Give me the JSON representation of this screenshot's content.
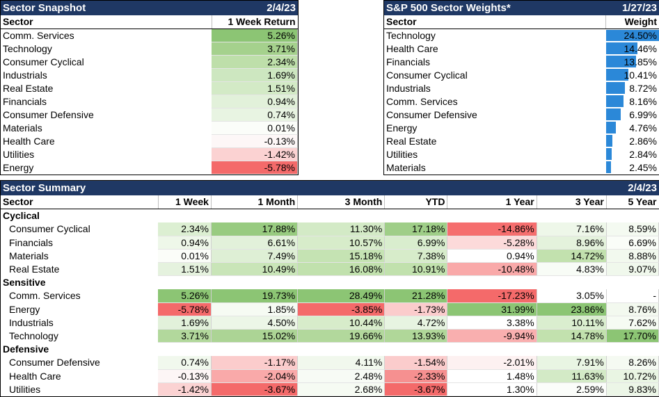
{
  "snapshot": {
    "title": "Sector Snapshot",
    "date": "2/4/23",
    "col_sector": "Sector",
    "col_return": "1 Week Return",
    "rows": [
      {
        "sector": "Comm. Services",
        "ret": "5.26%",
        "color": "#8cc574"
      },
      {
        "sector": "Technology",
        "ret": "3.71%",
        "color": "#a5d18d"
      },
      {
        "sector": "Consumer Cyclical",
        "ret": "2.34%",
        "color": "#bedfaa"
      },
      {
        "sector": "Industrials",
        "ret": "1.69%",
        "color": "#cde7c0"
      },
      {
        "sector": "Real Estate",
        "ret": "1.51%",
        "color": "#d3eac6"
      },
      {
        "sector": "Financials",
        "ret": "0.94%",
        "color": "#e2f1da"
      },
      {
        "sector": "Consumer Defensive",
        "ret": "0.74%",
        "color": "#e8f4e2"
      },
      {
        "sector": "Materials",
        "ret": "0.01%",
        "color": "#fbfdf9"
      },
      {
        "sector": "Health Care",
        "ret": "-0.13%",
        "color": "#fdf7f7"
      },
      {
        "sector": "Utilities",
        "ret": "-1.42%",
        "color": "#fbd2d2"
      },
      {
        "sector": "Energy",
        "ret": "-5.78%",
        "color": "#f46a6a"
      }
    ]
  },
  "weights": {
    "title": "S&P 500 Sector Weights*",
    "date": "1/27/23",
    "col_sector": "Sector",
    "col_weight": "Weight",
    "bar_color": "#2b88d8",
    "rows": [
      {
        "sector": "Technology",
        "weight": "24.50%",
        "value": 24.5
      },
      {
        "sector": "Health Care",
        "weight": "14.46%",
        "value": 14.46
      },
      {
        "sector": "Financials",
        "weight": "13.85%",
        "value": 13.85
      },
      {
        "sector": "Consumer Cyclical",
        "weight": "10.41%",
        "value": 10.41
      },
      {
        "sector": "Industrials",
        "weight": "8.72%",
        "value": 8.72
      },
      {
        "sector": "Comm. Services",
        "weight": "8.16%",
        "value": 8.16
      },
      {
        "sector": "Consumer Defensive",
        "weight": "6.99%",
        "value": 6.99
      },
      {
        "sector": "Energy",
        "weight": "4.76%",
        "value": 4.76
      },
      {
        "sector": "Real Estate",
        "weight": "2.86%",
        "value": 2.86
      },
      {
        "sector": "Utilities",
        "weight": "2.84%",
        "value": 2.84
      },
      {
        "sector": "Materials",
        "weight": "2.45%",
        "value": 2.45
      }
    ]
  },
  "summary": {
    "title": "Sector Summary",
    "date": "2/4/23",
    "columns": [
      "Sector",
      "1 Week",
      "1 Month",
      "3 Month",
      "YTD",
      "1 Year",
      "3 Year",
      "5 Year"
    ],
    "groups": [
      {
        "name": "Cyclical",
        "rows": [
          {
            "sector": "Consumer Cyclical",
            "cells": [
              {
                "v": "2.34%",
                "c": "#dcefd2"
              },
              {
                "v": "17.88%",
                "c": "#98cb80"
              },
              {
                "v": "11.30%",
                "c": "#d3eac6"
              },
              {
                "v": "17.18%",
                "c": "#9fce88"
              },
              {
                "v": "-14.86%",
                "c": "#f56e6e"
              },
              {
                "v": "7.16%",
                "c": "#eef7e9"
              },
              {
                "v": "8.59%",
                "c": "#f4faf1"
              }
            ]
          },
          {
            "sector": "Financials",
            "cells": [
              {
                "v": "0.94%",
                "c": "#eef7e9"
              },
              {
                "v": "6.61%",
                "c": "#e2f1da"
              },
              {
                "v": "10.57%",
                "c": "#d7ecca"
              },
              {
                "v": "6.99%",
                "c": "#d9edce"
              },
              {
                "v": "-5.28%",
                "c": "#fcdada"
              },
              {
                "v": "8.96%",
                "c": "#e4f2dc"
              },
              {
                "v": "6.69%",
                "c": "#fafdf8"
              }
            ]
          },
          {
            "sector": "Materials",
            "cells": [
              {
                "v": "0.01%",
                "c": "#fbfdf9"
              },
              {
                "v": "7.49%",
                "c": "#deefd5"
              },
              {
                "v": "15.18%",
                "c": "#c5e3b3"
              },
              {
                "v": "7.38%",
                "c": "#d7ecca"
              },
              {
                "v": "0.94%",
                "c": "#ffffff"
              },
              {
                "v": "14.72%",
                "c": "#c2e1ae"
              },
              {
                "v": "8.88%",
                "c": "#f2f9ee"
              }
            ]
          },
          {
            "sector": "Real Estate",
            "cells": [
              {
                "v": "1.51%",
                "c": "#e5f2de"
              },
              {
                "v": "10.49%",
                "c": "#c9e5b8"
              },
              {
                "v": "16.08%",
                "c": "#c1e1ad"
              },
              {
                "v": "10.91%",
                "c": "#c1e1ad"
              },
              {
                "v": "-10.48%",
                "c": "#f9a9a9"
              },
              {
                "v": "4.83%",
                "c": "#f8fcf6"
              },
              {
                "v": "9.07%",
                "c": "#f0f8ec"
              }
            ]
          }
        ]
      },
      {
        "name": "Sensitive",
        "rows": [
          {
            "sector": "Comm. Services",
            "cells": [
              {
                "v": "5.26%",
                "c": "#8cc574"
              },
              {
                "v": "19.73%",
                "c": "#8cc574"
              },
              {
                "v": "28.49%",
                "c": "#8cc574"
              },
              {
                "v": "21.28%",
                "c": "#8cc574"
              },
              {
                "v": "-17.23%",
                "c": "#f46a6a"
              },
              {
                "v": "3.05%",
                "c": "#ffffff"
              },
              {
                "v": "-",
                "c": "#ffffff"
              }
            ]
          },
          {
            "sector": "Energy",
            "cells": [
              {
                "v": "-5.78%",
                "c": "#f46a6a"
              },
              {
                "v": "1.85%",
                "c": "#f6fbf3"
              },
              {
                "v": "-3.85%",
                "c": "#f46a6a"
              },
              {
                "v": "-1.73%",
                "c": "#fbcccc"
              },
              {
                "v": "31.99%",
                "c": "#8cc574"
              },
              {
                "v": "23.86%",
                "c": "#8cc574"
              },
              {
                "v": "8.76%",
                "c": "#f3f9ef"
              }
            ]
          },
          {
            "sector": "Industrials",
            "cells": [
              {
                "v": "1.69%",
                "c": "#e2f1da"
              },
              {
                "v": "4.50%",
                "c": "#ecf6e7"
              },
              {
                "v": "10.44%",
                "c": "#d7ecca"
              },
              {
                "v": "4.72%",
                "c": "#e7f4e1"
              },
              {
                "v": "3.38%",
                "c": "#ffffff"
              },
              {
                "v": "10.11%",
                "c": "#daeecf"
              },
              {
                "v": "7.62%",
                "c": "#f6fbf3"
              }
            ]
          },
          {
            "sector": "Technology",
            "cells": [
              {
                "v": "3.71%",
                "c": "#b2d89c"
              },
              {
                "v": "15.02%",
                "c": "#acd495"
              },
              {
                "v": "19.66%",
                "c": "#b2d89c"
              },
              {
                "v": "13.93%",
                "c": "#b0d799"
              },
              {
                "v": "-9.94%",
                "c": "#f9afaf"
              },
              {
                "v": "14.78%",
                "c": "#c2e1ae"
              },
              {
                "v": "17.70%",
                "c": "#8cc574"
              }
            ]
          }
        ]
      },
      {
        "name": "Defensive",
        "rows": [
          {
            "sector": "Consumer Defensive",
            "cells": [
              {
                "v": "0.74%",
                "c": "#f1f8ed"
              },
              {
                "v": "-1.17%",
                "c": "#fbcccc"
              },
              {
                "v": "4.11%",
                "c": "#f1f8ed"
              },
              {
                "v": "-1.54%",
                "c": "#fbcccc"
              },
              {
                "v": "-2.01%",
                "c": "#fdf1f1"
              },
              {
                "v": "7.91%",
                "c": "#e9f5e3"
              },
              {
                "v": "8.26%",
                "c": "#f5faf2"
              }
            ]
          },
          {
            "sector": "Health Care",
            "cells": [
              {
                "v": "-0.13%",
                "c": "#fdf6f6"
              },
              {
                "v": "-2.04%",
                "c": "#f9a9a9"
              },
              {
                "v": "2.48%",
                "c": "#f7fbf5"
              },
              {
                "v": "-2.33%",
                "c": "#f69090"
              },
              {
                "v": "1.48%",
                "c": "#ffffff"
              },
              {
                "v": "11.63%",
                "c": "#d3eac6"
              },
              {
                "v": "10.72%",
                "c": "#e9f5e3"
              }
            ]
          },
          {
            "sector": "Utilities",
            "cells": [
              {
                "v": "-1.42%",
                "c": "#fbd2d2"
              },
              {
                "v": "-3.67%",
                "c": "#f46a6a"
              },
              {
                "v": "2.68%",
                "c": "#f6fbf3"
              },
              {
                "v": "-3.67%",
                "c": "#f46a6a"
              },
              {
                "v": "1.30%",
                "c": "#ffffff"
              },
              {
                "v": "2.59%",
                "c": "#fbfdfa"
              },
              {
                "v": "9.83%",
                "c": "#ecf6e7"
              }
            ]
          }
        ]
      }
    ]
  }
}
